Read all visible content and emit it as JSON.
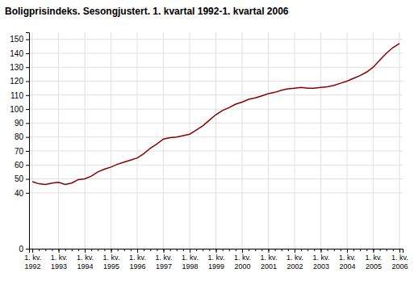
{
  "chart_data": {
    "type": "line",
    "title": "Boligprisindeks. Sesongjustert. 1. kvartal 1992-1. kvartal 2006",
    "categories": [
      "1. kv.\n1992",
      null,
      null,
      null,
      "1. kv.\n1993",
      null,
      null,
      null,
      "1. kv.\n1994",
      null,
      null,
      null,
      "1. kv.\n1995",
      null,
      null,
      null,
      "1. kv.\n1996",
      null,
      null,
      null,
      "1. kv.\n1997",
      null,
      null,
      null,
      "1. kv.\n1998",
      null,
      null,
      null,
      "1. kv.\n1999",
      null,
      null,
      null,
      "1. kv.\n2000",
      null,
      null,
      null,
      "1. kv.\n2001",
      null,
      null,
      null,
      "1. kv.\n2002",
      null,
      null,
      null,
      "1. kv.\n2003",
      null,
      null,
      null,
      "1. kv.\n2004",
      null,
      null,
      null,
      "1. kv.\n2005",
      null,
      null,
      null,
      "1. kv.\n2006"
    ],
    "values": [
      48.0,
      46.5,
      46.0,
      47.0,
      47.5,
      46.0,
      47.0,
      49.5,
      50.0,
      52.0,
      55.0,
      57.0,
      58.5,
      60.5,
      62.0,
      63.5,
      65.0,
      68.0,
      72.0,
      75.0,
      78.5,
      79.5,
      80.0,
      81.0,
      82.0,
      85.0,
      88.0,
      92.0,
      96.0,
      99.0,
      101.0,
      103.5,
      105.0,
      107.0,
      108.0,
      109.5,
      111.0,
      112.0,
      113.5,
      114.5,
      115.0,
      115.5,
      115.0,
      115.0,
      115.5,
      116.0,
      117.0,
      118.5,
      120.0,
      122.0,
      124.0,
      126.5,
      130.0,
      135.0,
      140.0,
      144.0,
      147.0
    ],
    "color": "#8b0000",
    "ylim": [
      0,
      155
    ],
    "yticks": [
      0,
      40,
      50,
      60,
      70,
      80,
      90,
      100,
      110,
      120,
      130,
      140,
      150
    ],
    "grid": true
  }
}
